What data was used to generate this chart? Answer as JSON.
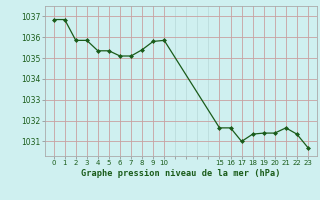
{
  "x": [
    0,
    1,
    2,
    3,
    4,
    5,
    6,
    7,
    8,
    9,
    10,
    15,
    16,
    17,
    18,
    19,
    20,
    21,
    22,
    23
  ],
  "y": [
    1036.85,
    1036.85,
    1035.85,
    1035.85,
    1035.35,
    1035.35,
    1035.1,
    1035.1,
    1035.4,
    1035.8,
    1035.85,
    1031.65,
    1031.65,
    1031.0,
    1031.35,
    1031.4,
    1031.4,
    1031.65,
    1031.35,
    1030.7
  ],
  "line_color": "#1a5c1a",
  "marker_color": "#1a5c1a",
  "bg_color": "#cff0f0",
  "grid_color_major": "#c8a0a0",
  "grid_color_minor": "#b8d8d8",
  "ylabel_ticks": [
    1031,
    1032,
    1033,
    1034,
    1035,
    1036,
    1037
  ],
  "title": "Graphe pression niveau de la mer (hPa)",
  "title_color": "#1a5c1a",
  "ylim": [
    1030.3,
    1037.5
  ],
  "xlim_left": -0.8,
  "xlim_right": 23.8
}
